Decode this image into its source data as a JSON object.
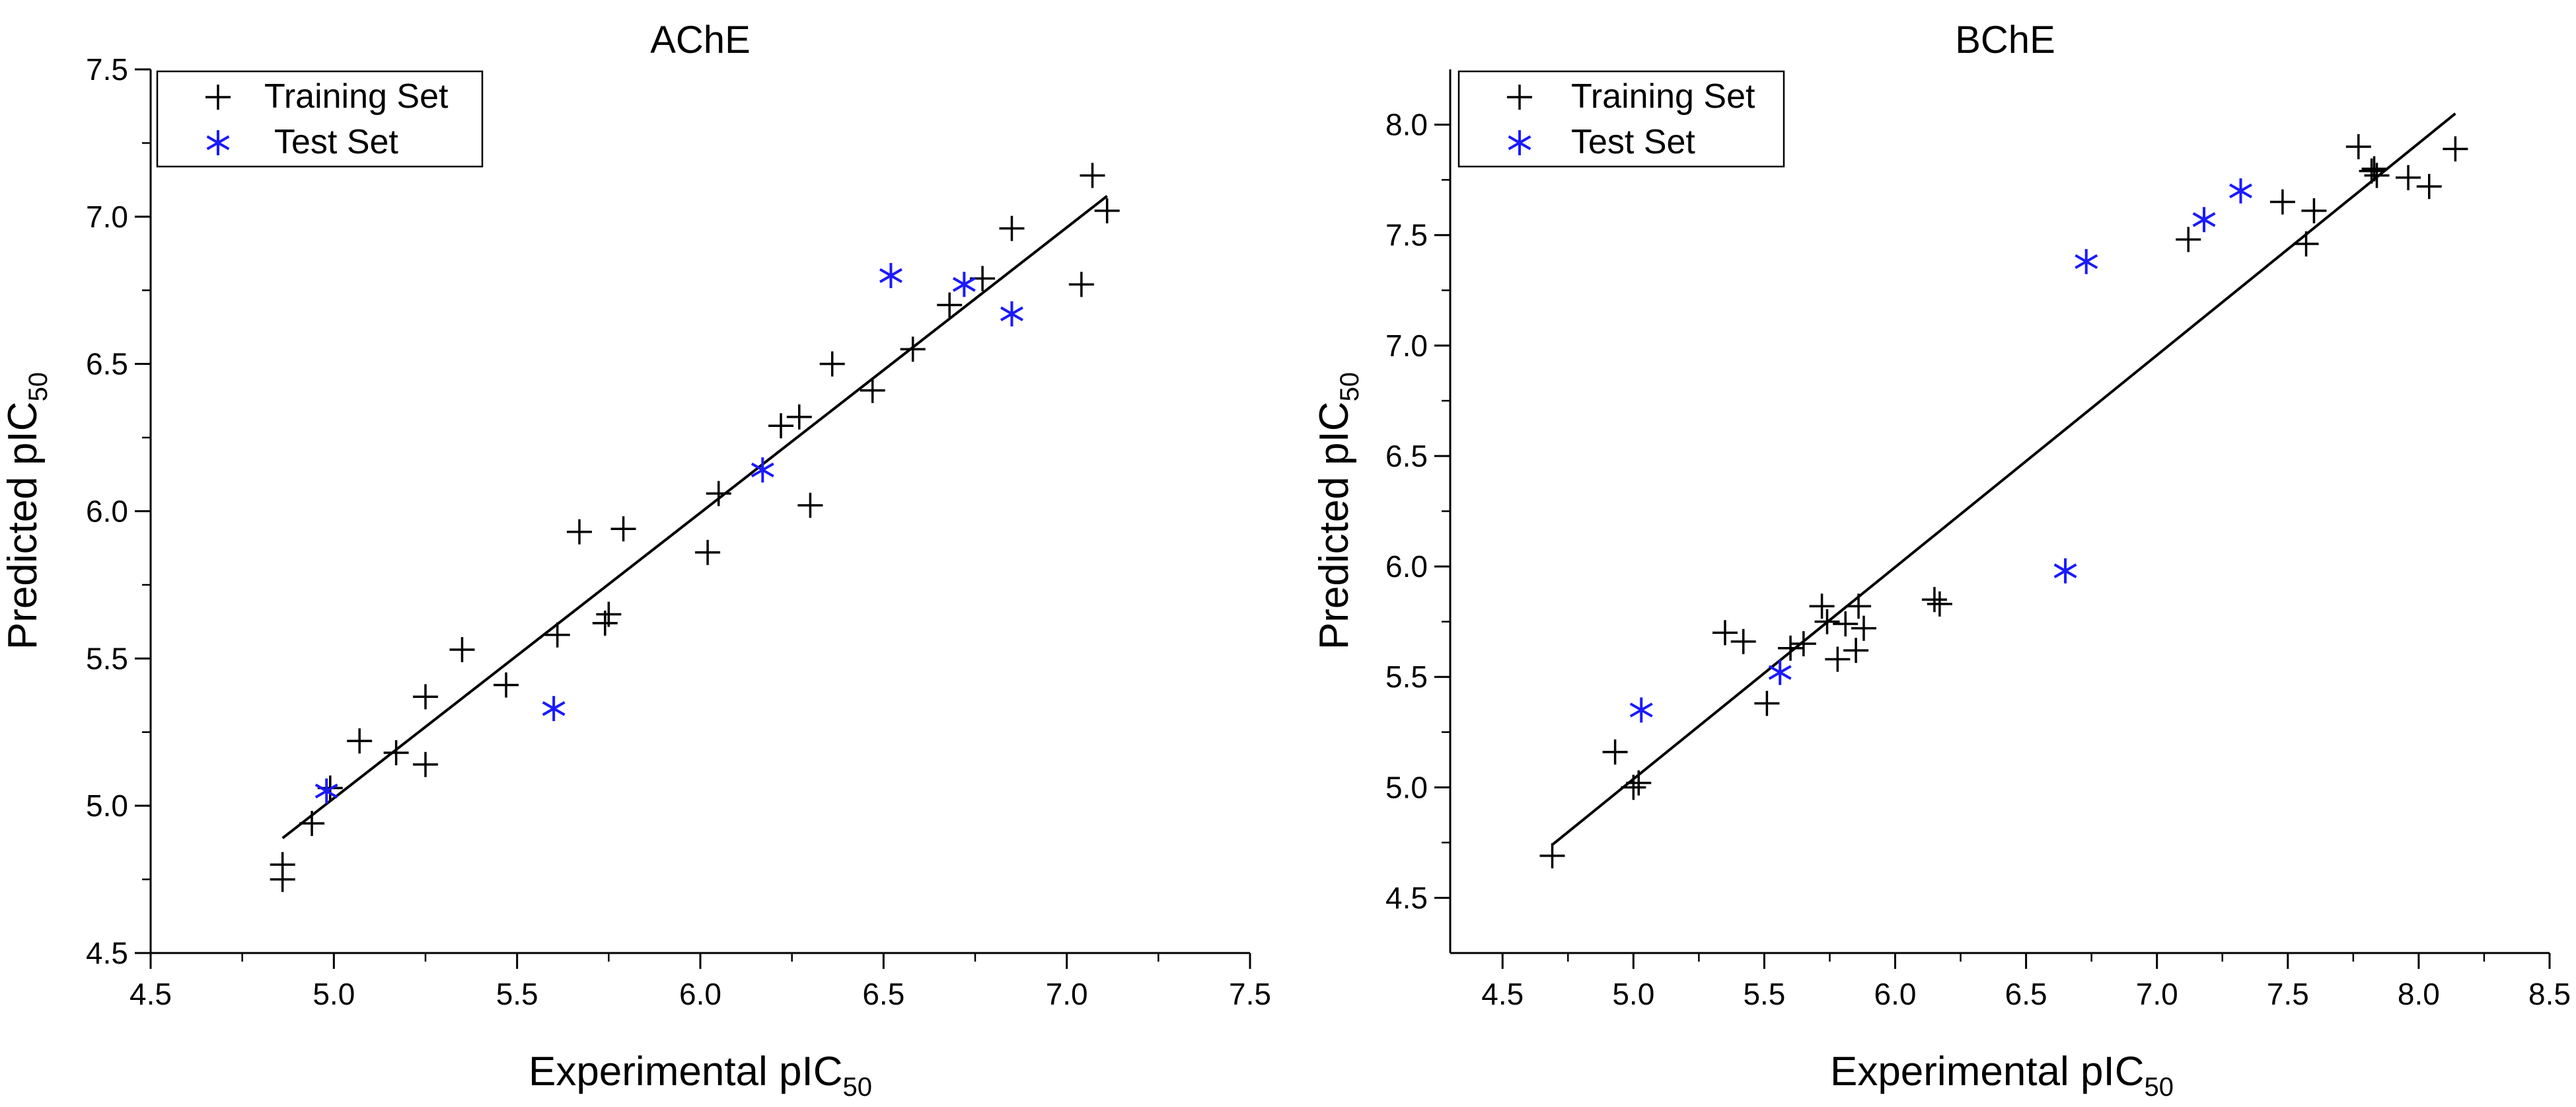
{
  "chart_data": [
    {
      "type": "scatter",
      "title": "AChE",
      "xlabel": {
        "main": "Experimental pIC",
        "sub": "50"
      },
      "ylabel": {
        "main": "Predicted pIC",
        "sub": "50"
      },
      "xlim": [
        4.5,
        7.5
      ],
      "ylim": [
        4.5,
        7.5
      ],
      "xticks": [
        4.5,
        5.0,
        5.5,
        6.0,
        6.5,
        7.0,
        7.5
      ],
      "yticks": [
        4.5,
        5.0,
        5.5,
        6.0,
        6.5,
        7.0,
        7.5
      ],
      "xtick_labels": [
        "4.5",
        "5.0",
        "5.5",
        "6.0",
        "6.5",
        "7.0",
        "7.5"
      ],
      "ytick_labels": [
        "4.5",
        "5.0",
        "5.5",
        "6.0",
        "6.5",
        "7.0",
        "7.5"
      ],
      "grid": false,
      "legend_position": "top-left",
      "regression_line": {
        "x": [
          4.86,
          7.11
        ],
        "y": [
          4.89,
          7.07
        ]
      },
      "series": [
        {
          "name": "Training Set",
          "marker": "plus",
          "color": "#000000",
          "points": [
            [
              4.86,
              4.8
            ],
            [
              4.86,
              4.75
            ],
            [
              4.94,
              4.94
            ],
            [
              4.99,
              5.06
            ],
            [
              5.07,
              5.22
            ],
            [
              5.17,
              5.18
            ],
            [
              5.25,
              5.37
            ],
            [
              5.25,
              5.14
            ],
            [
              5.35,
              5.53
            ],
            [
              5.47,
              5.41
            ],
            [
              5.61,
              5.58
            ],
            [
              5.67,
              5.93
            ],
            [
              5.74,
              5.62
            ],
            [
              5.75,
              5.65
            ],
            [
              5.79,
              5.94
            ],
            [
              6.02,
              5.86
            ],
            [
              6.05,
              6.06
            ],
            [
              6.22,
              6.29
            ],
            [
              6.27,
              6.32
            ],
            [
              6.3,
              6.02
            ],
            [
              6.36,
              6.5
            ],
            [
              6.47,
              6.41
            ],
            [
              6.58,
              6.55
            ],
            [
              6.68,
              6.7
            ],
            [
              6.77,
              6.79
            ],
            [
              6.85,
              6.96
            ],
            [
              7.04,
              6.77
            ],
            [
              7.07,
              7.14
            ],
            [
              7.11,
              7.02
            ]
          ]
        },
        {
          "name": "Test Set",
          "marker": "asterisk",
          "color": "#1a1aff",
          "points": [
            [
              4.98,
              5.05
            ],
            [
              5.6,
              5.33
            ],
            [
              6.17,
              6.14
            ],
            [
              6.52,
              6.8
            ],
            [
              6.72,
              6.77
            ],
            [
              6.85,
              6.67
            ]
          ]
        }
      ]
    },
    {
      "type": "scatter",
      "title": "BChE",
      "xlabel": {
        "main": "Experimental pIC",
        "sub": "50"
      },
      "ylabel": {
        "main": "Predicted pIC",
        "sub": "50"
      },
      "xlim": [
        4.3,
        8.5
      ],
      "ylim": [
        4.25,
        8.25
      ],
      "xticks": [
        4.5,
        5.0,
        5.5,
        6.0,
        6.5,
        7.0,
        7.5,
        8.0,
        8.5
      ],
      "yticks": [
        4.5,
        5.0,
        5.5,
        6.0,
        6.5,
        7.0,
        7.5,
        8.0
      ],
      "xtick_labels": [
        "4.5",
        "5.0",
        "5.5",
        "6.0",
        "6.5",
        "7.0",
        "7.5",
        "8.0",
        "8.5"
      ],
      "ytick_labels": [
        "4.5",
        "5.0",
        "5.5",
        "6.0",
        "6.5",
        "7.0",
        "7.5",
        "8.0"
      ],
      "grid": false,
      "legend_position": "top-left",
      "regression_line": {
        "x": [
          4.69,
          8.14
        ],
        "y": [
          4.74,
          8.05
        ]
      },
      "series": [
        {
          "name": "Training Set",
          "marker": "plus",
          "color": "#000000",
          "points": [
            [
              4.69,
              4.69
            ],
            [
              4.93,
              5.16
            ],
            [
              5.0,
              5.0
            ],
            [
              5.02,
              5.02
            ],
            [
              5.35,
              5.7
            ],
            [
              5.42,
              5.66
            ],
            [
              5.51,
              5.38
            ],
            [
              5.6,
              5.63
            ],
            [
              5.65,
              5.65
            ],
            [
              5.72,
              5.82
            ],
            [
              5.74,
              5.75
            ],
            [
              5.78,
              5.58
            ],
            [
              5.81,
              5.74
            ],
            [
              5.85,
              5.62
            ],
            [
              5.86,
              5.82
            ],
            [
              5.88,
              5.72
            ],
            [
              6.15,
              5.85
            ],
            [
              6.17,
              5.83
            ],
            [
              7.12,
              7.48
            ],
            [
              7.48,
              7.65
            ],
            [
              7.57,
              7.46
            ],
            [
              7.6,
              7.61
            ],
            [
              7.77,
              7.9
            ],
            [
              7.82,
              7.79
            ],
            [
              7.83,
              7.8
            ],
            [
              7.84,
              7.77
            ],
            [
              7.96,
              7.76
            ],
            [
              8.04,
              7.72
            ],
            [
              8.14,
              7.89
            ]
          ]
        },
        {
          "name": "Test Set",
          "marker": "asterisk",
          "color": "#1a1aff",
          "points": [
            [
              5.03,
              5.35
            ],
            [
              5.56,
              5.52
            ],
            [
              6.65,
              5.98
            ],
            [
              6.73,
              7.38
            ],
            [
              7.18,
              7.57
            ],
            [
              7.32,
              7.7
            ]
          ]
        }
      ]
    }
  ]
}
